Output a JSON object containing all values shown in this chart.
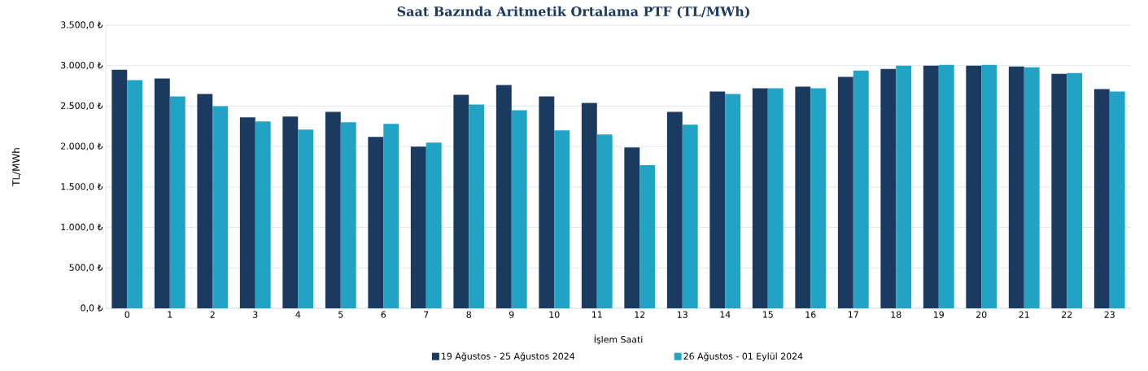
{
  "chart_data": {
    "type": "bar",
    "title": "Saat Bazında Aritmetik Ortalama PTF (TL/MWh)",
    "xlabel": "İşlem Saati",
    "ylabel": "TL/MWh",
    "categories": [
      "0",
      "1",
      "2",
      "3",
      "4",
      "5",
      "6",
      "7",
      "8",
      "9",
      "10",
      "11",
      "12",
      "13",
      "14",
      "15",
      "16",
      "17",
      "18",
      "19",
      "20",
      "21",
      "22",
      "23"
    ],
    "series": [
      {
        "name": "19 Ağustos - 25 Ağustos 2024",
        "color": "#1b3a5f",
        "values": [
          2950,
          2840,
          2650,
          2360,
          2370,
          2430,
          2120,
          2000,
          2640,
          2760,
          2620,
          2540,
          1990,
          2430,
          2680,
          2720,
          2740,
          2860,
          2960,
          3000,
          3000,
          2990,
          2900,
          2710
        ]
      },
      {
        "name": "26 Ağustos - 01 Eylül 2024",
        "color": "#21a3c6",
        "values": [
          2820,
          2620,
          2500,
          2310,
          2210,
          2300,
          2280,
          2050,
          2520,
          2450,
          2200,
          2150,
          1770,
          2270,
          2650,
          2720,
          2720,
          2940,
          3000,
          3010,
          3010,
          2980,
          2910,
          2680
        ]
      }
    ],
    "ylim": [
      0,
      3500
    ],
    "yticks": [
      {
        "value": 0,
        "label": "0,0 ₺"
      },
      {
        "value": 500,
        "label": "500,0 ₺"
      },
      {
        "value": 1000,
        "label": "1.000,0 ₺"
      },
      {
        "value": 1500,
        "label": "1.500,0 ₺"
      },
      {
        "value": 2000,
        "label": "2.000,0 ₺"
      },
      {
        "value": 2500,
        "label": "2.500,0 ₺"
      },
      {
        "value": 3000,
        "label": "3.000,0 ₺"
      },
      {
        "value": 3500,
        "label": "3.500,0 ₺"
      }
    ],
    "grid": "y",
    "legend": "bottom"
  }
}
